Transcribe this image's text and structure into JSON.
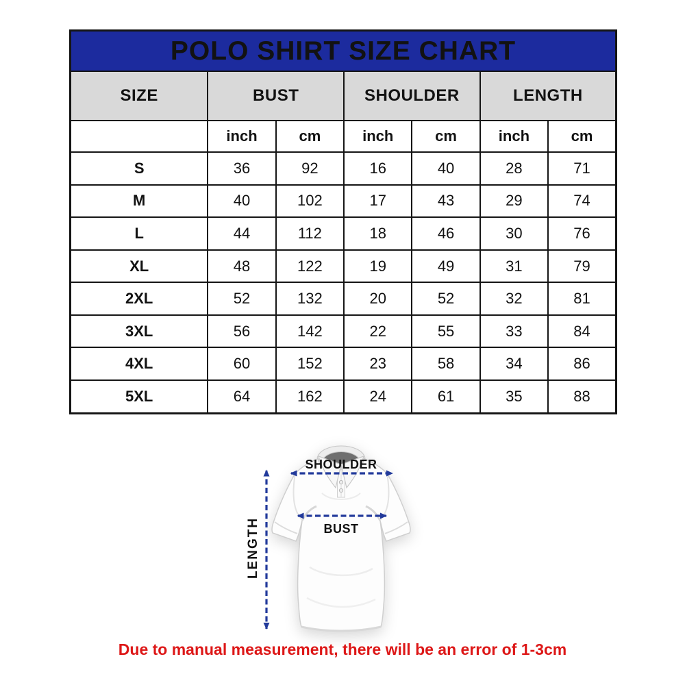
{
  "title": "POLO SHIRT SIZE CHART",
  "table": {
    "groups": [
      "SIZE",
      "BUST",
      "SHOULDER",
      "LENGTH"
    ],
    "unit_headers": [
      "inch",
      "cm",
      "inch",
      "cm",
      "inch",
      "cm"
    ],
    "rows": [
      {
        "size": "S",
        "values": [
          "36",
          "92",
          "16",
          "40",
          "28",
          "71"
        ]
      },
      {
        "size": "M",
        "values": [
          "40",
          "102",
          "17",
          "43",
          "29",
          "74"
        ]
      },
      {
        "size": "L",
        "values": [
          "44",
          "112",
          "18",
          "46",
          "30",
          "76"
        ]
      },
      {
        "size": "XL",
        "values": [
          "48",
          "122",
          "19",
          "49",
          "31",
          "79"
        ]
      },
      {
        "size": "2XL",
        "values": [
          "52",
          "132",
          "20",
          "52",
          "32",
          "81"
        ]
      },
      {
        "size": "3XL",
        "values": [
          "56",
          "142",
          "22",
          "55",
          "33",
          "84"
        ]
      },
      {
        "size": "4XL",
        "values": [
          "60",
          "152",
          "23",
          "58",
          "34",
          "86"
        ]
      },
      {
        "size": "5XL",
        "values": [
          "64",
          "162",
          "24",
          "61",
          "35",
          "88"
        ]
      }
    ]
  },
  "diagram": {
    "shoulder_label": "SHOULDER",
    "bust_label": "BUST",
    "length_label": "LENGTH"
  },
  "note": "Due to manual measurement, there will be an error of 1-3cm",
  "colors": {
    "title_bg": "#1c2b9e",
    "title_text": "#ffffff",
    "header_bg": "#d9d9d9",
    "table_border": "#151515",
    "arrow_color": "#223a9b",
    "note_color": "#dd1717"
  },
  "chart_data": {
    "type": "table",
    "title": "POLO SHIRT SIZE CHART",
    "columns": [
      "SIZE",
      "BUST inch",
      "BUST cm",
      "SHOULDER inch",
      "SHOULDER cm",
      "LENGTH inch",
      "LENGTH cm"
    ],
    "rows": [
      [
        "S",
        36,
        92,
        16,
        40,
        28,
        71
      ],
      [
        "M",
        40,
        102,
        17,
        43,
        29,
        74
      ],
      [
        "L",
        44,
        112,
        18,
        46,
        30,
        76
      ],
      [
        "XL",
        48,
        122,
        19,
        49,
        31,
        79
      ],
      [
        "2XL",
        52,
        132,
        20,
        52,
        32,
        81
      ],
      [
        "3XL",
        56,
        142,
        22,
        55,
        33,
        84
      ],
      [
        "4XL",
        60,
        152,
        23,
        58,
        34,
        86
      ],
      [
        "5XL",
        64,
        162,
        24,
        61,
        35,
        88
      ]
    ],
    "footnote": "Due to manual measurement, there will be an error of 1-3cm"
  }
}
